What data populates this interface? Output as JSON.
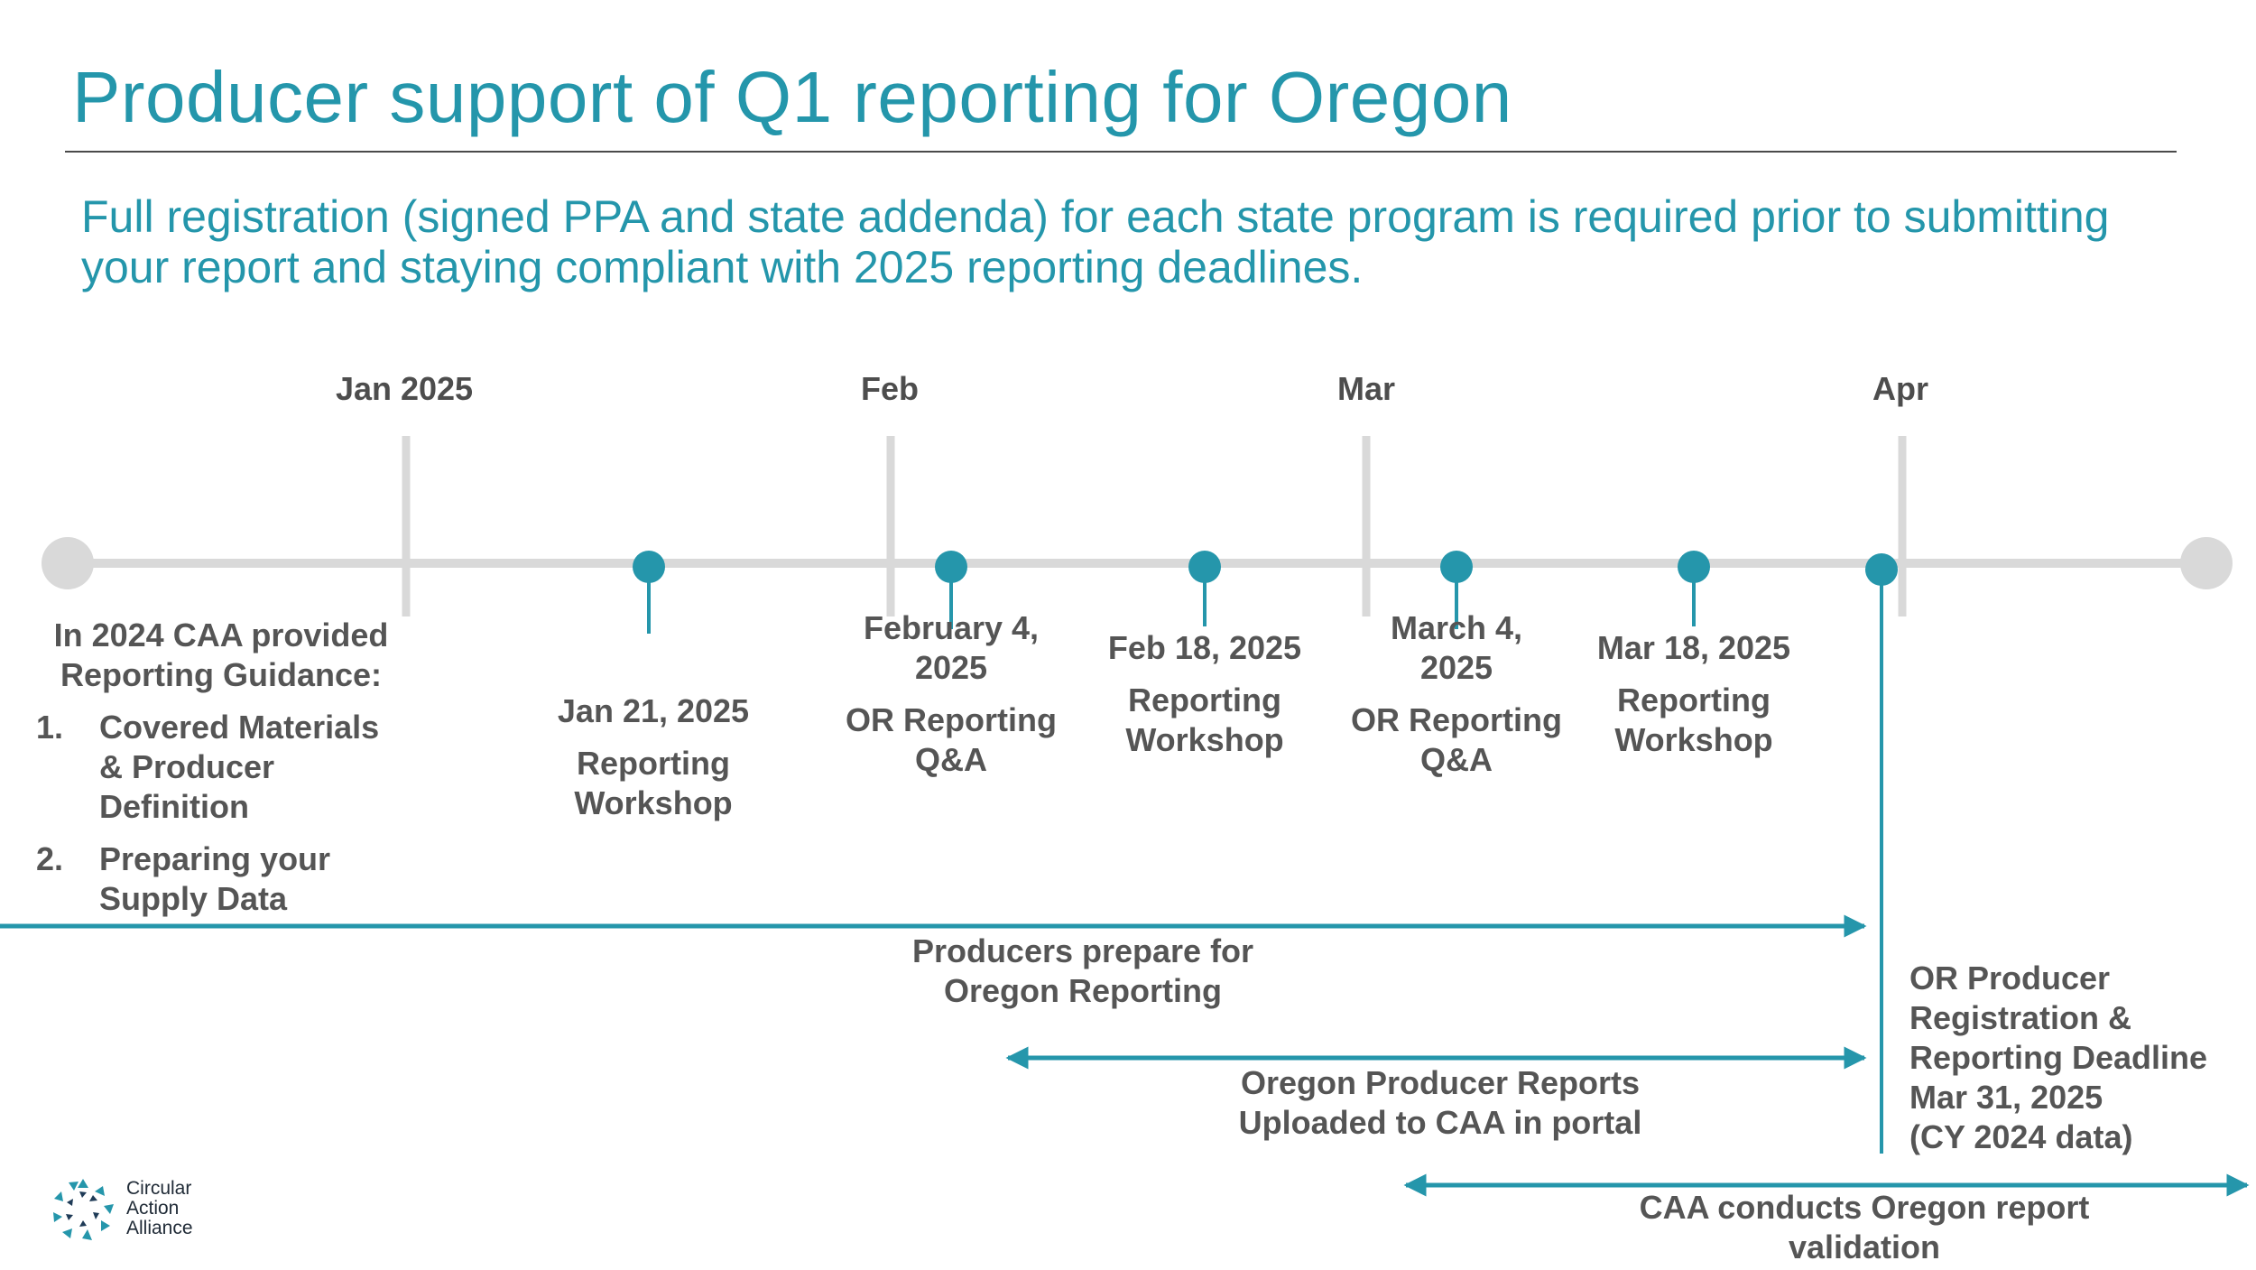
{
  "title": "Producer support of Q1 reporting for Oregon",
  "subtitle": "Full registration (signed PPA and state addenda) for each state program is required prior to submitting your report and staying compliant with 2025 reporting deadlines.",
  "months": [
    "Jan 2025",
    "Feb",
    "Mar",
    "Apr"
  ],
  "intro": {
    "heading": "In 2024 CAA provided Reporting Guidance:",
    "items": [
      {
        "num": "1.",
        "text": "Covered Materials & Producer Definition"
      },
      {
        "num": "2.",
        "text": "Preparing your Supply Data"
      }
    ]
  },
  "events": [
    {
      "date": "Jan 21, 2025",
      "name": "Reporting Workshop"
    },
    {
      "date": "February 4, 2025",
      "name": "OR Reporting Q&A"
    },
    {
      "date": "Feb 18, 2025",
      "name": "Reporting Workshop"
    },
    {
      "date": "March 4, 2025",
      "name": "OR Reporting Q&A"
    },
    {
      "date": "Mar 18, 2025",
      "name": "Reporting Workshop"
    }
  ],
  "deadline": {
    "line1": "OR Producer",
    "line2": "Registration &",
    "line3": "Reporting Deadline",
    "line4": "Mar 31, 2025",
    "line5": "(CY 2024 data)"
  },
  "phases": [
    {
      "line1": "Producers prepare for",
      "line2": "Oregon Reporting"
    },
    {
      "line1": "Oregon Producer Reports",
      "line2": "Uploaded to CAA in portal"
    },
    {
      "line1": "CAA conducts Oregon report",
      "line2": "validation"
    }
  ],
  "logo": {
    "line1": "Circular",
    "line2": "Action",
    "line3": "Alliance"
  },
  "colors": {
    "teal": "#2596ab",
    "gray_line": "#d9d9d9",
    "text_gray": "#555555"
  }
}
